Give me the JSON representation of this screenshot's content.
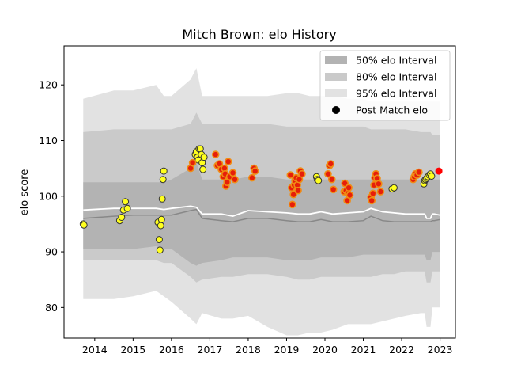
{
  "chart_data": {
    "type": "scatter",
    "title": "Mitch Brown: elo History",
    "xlabel": "",
    "ylabel": "elo score",
    "xlim": [
      2013.2,
      2023.4
    ],
    "ylim": [
      74.5,
      127.0
    ],
    "x_ticks": [
      "2014",
      "2015",
      "2016",
      "2017",
      "2018",
      "2019",
      "2020",
      "2021",
      "2022",
      "2023"
    ],
    "y_ticks": [
      "80",
      "90",
      "100",
      "110",
      "120"
    ],
    "legend": {
      "placement": "top-right",
      "entries": [
        "50% elo Interval",
        "80% elo Interval",
        "95% elo Interval",
        "Post Match elo"
      ]
    },
    "colors": {
      "band95": "#e2e2e2",
      "band80": "#cacaca",
      "band50": "#b3b3b3",
      "median_line": "#ffffff",
      "median50_line": "#888888",
      "point_yellow": "#ffff1e",
      "point_red": "#e61e0a",
      "point_orange_edge": "#f08c14",
      "last_point": "#ff0000"
    },
    "bands": {
      "x": [
        2013.7,
        2014.5,
        2015.0,
        2015.6,
        2015.8,
        2016.0,
        2016.5,
        2016.65,
        2016.8,
        2017.3,
        2017.6,
        2018.0,
        2018.5,
        2019.0,
        2019.3,
        2019.6,
        2019.9,
        2020.2,
        2020.6,
        2021.0,
        2021.2,
        2021.5,
        2021.8,
        2022.1,
        2022.5,
        2022.6,
        2022.65,
        2022.75,
        2022.8,
        2022.85,
        2023.0
      ],
      "p95_lo": [
        81.5,
        81.5,
        82,
        83,
        82,
        81,
        78,
        77,
        79,
        78,
        78,
        78.5,
        76.5,
        75,
        75,
        75.5,
        75.5,
        76,
        77,
        77,
        77,
        77.5,
        78,
        78.5,
        79,
        79,
        76.5,
        76.5,
        80,
        80,
        80
      ],
      "p95_hi": [
        117.5,
        119,
        119,
        120,
        118,
        118,
        121,
        123,
        118,
        118,
        118,
        118,
        118,
        118.5,
        118.5,
        118,
        118,
        118,
        117.5,
        117.5,
        117,
        117,
        117,
        117,
        117,
        117,
        117,
        117,
        117,
        117,
        117
      ],
      "p80_lo": [
        88.5,
        88.5,
        88.5,
        88.5,
        88,
        88,
        85.5,
        84.5,
        85,
        85.5,
        85.5,
        86,
        86,
        85.5,
        85,
        85,
        85.5,
        85.5,
        85.5,
        85.5,
        85.5,
        86,
        86,
        86.5,
        86.5,
        86.5,
        84.5,
        84.5,
        86.5,
        86.5,
        86.5
      ],
      "p80_hi": [
        111.5,
        112,
        112,
        112,
        112,
        112,
        113,
        115,
        113,
        113,
        113,
        113,
        113,
        112.5,
        112.5,
        112.5,
        112.5,
        112.5,
        112.5,
        112.5,
        112,
        112,
        112,
        112,
        111.5,
        111.5,
        111.5,
        111.5,
        111,
        111,
        111
      ],
      "p50_lo": [
        90.5,
        90.5,
        90.5,
        91,
        90.5,
        90.5,
        88,
        87.5,
        88,
        88.5,
        89,
        89,
        89,
        88.5,
        88.5,
        88.5,
        89,
        89,
        89,
        89.5,
        89.5,
        89.5,
        89.5,
        89.5,
        89.5,
        89.5,
        88.5,
        88.5,
        90,
        90,
        90
      ],
      "p50_hi": [
        102.5,
        102.5,
        102.5,
        102.5,
        102.5,
        103,
        105,
        106,
        103,
        103,
        103,
        103.5,
        103.5,
        103,
        103,
        103,
        103,
        103,
        103,
        103,
        103,
        103,
        103,
        103,
        103,
        103,
        103,
        103,
        103,
        103,
        103
      ],
      "median": [
        97.5,
        97.8,
        97.8,
        97.8,
        97.6,
        97.8,
        98.2,
        98.0,
        96.8,
        96.8,
        96.4,
        97.4,
        97.2,
        97.0,
        96.8,
        96.8,
        97.2,
        96.8,
        97.0,
        97.2,
        97.8,
        97.2,
        97.0,
        96.8,
        96.8,
        96.8,
        96.0,
        96.0,
        96.8,
        96.8,
        96.6
      ],
      "median50": [
        96.0,
        96.4,
        96.6,
        96.6,
        96.6,
        96.6,
        97.4,
        97.6,
        96.0,
        95.6,
        95.4,
        96.0,
        96.0,
        95.6,
        95.4,
        95.4,
        95.8,
        95.4,
        95.4,
        95.6,
        96.4,
        95.6,
        95.4,
        95.4,
        95.4,
        95.4,
        95.4,
        95.4,
        95.6,
        95.6,
        95.8
      ]
    },
    "series": [
      {
        "style": "yellow",
        "x": [
          2013.7,
          2013.72,
          2014.65,
          2014.7,
          2014.75,
          2014.8,
          2014.85,
          2015.65,
          2015.68,
          2015.7,
          2015.72,
          2015.74,
          2015.76,
          2015.78,
          2015.8,
          2016.62,
          2016.65,
          2016.68,
          2016.7,
          2016.72,
          2016.75,
          2016.78,
          2016.8,
          2016.82,
          2016.85,
          2019.78,
          2019.8,
          2019.83,
          2021.75,
          2021.8,
          2022.58,
          2022.6,
          2022.62,
          2022.65,
          2022.68,
          2022.72,
          2022.75,
          2022.78
        ],
        "y": [
          95.0,
          94.8,
          95.6,
          96.2,
          97.5,
          99.0,
          97.8,
          95.3,
          92.2,
          90.3,
          94.7,
          95.8,
          99.5,
          103.0,
          104.5,
          107.5,
          108.0,
          107.0,
          106.5,
          108.5,
          108.5,
          107.5,
          106.0,
          104.8,
          107.0,
          103.5,
          103.0,
          102.8,
          101.3,
          101.5,
          102.2,
          102.8,
          103.0,
          103.2,
          103.5,
          103.8,
          104.0,
          103.6
        ]
      },
      {
        "style": "red",
        "x": [
          2016.5,
          2016.55,
          2017.15,
          2017.2,
          2017.25,
          2017.3,
          2017.35,
          2017.38,
          2017.4,
          2017.42,
          2017.45,
          2017.48,
          2017.52,
          2017.6,
          2017.65,
          2018.1,
          2018.15,
          2018.18,
          2019.1,
          2019.13,
          2019.15,
          2019.18,
          2019.2,
          2019.22,
          2019.25,
          2019.28,
          2019.3,
          2019.33,
          2019.36,
          2019.4,
          2020.08,
          2020.12,
          2020.15,
          2020.18,
          2020.22,
          2020.5,
          2020.52,
          2020.55,
          2020.58,
          2020.6,
          2020.62,
          2020.65,
          2021.2,
          2021.22,
          2021.25,
          2021.28,
          2021.3,
          2021.33,
          2021.36,
          2021.4,
          2021.45,
          2022.3,
          2022.33,
          2022.36,
          2022.4,
          2022.45
        ],
        "y": [
          105.0,
          106.0,
          107.5,
          105.5,
          105.8,
          104.8,
          103.5,
          105.0,
          104.0,
          101.8,
          102.5,
          106.2,
          103.5,
          104.2,
          103.0,
          103.3,
          105.0,
          104.5,
          103.8,
          101.5,
          98.5,
          100.3,
          102.0,
          102.8,
          103.3,
          102.0,
          101.0,
          103.0,
          104.5,
          104.0,
          104.0,
          105.5,
          105.8,
          103.0,
          101.2,
          100.8,
          102.3,
          101.0,
          99.2,
          100.5,
          101.5,
          100.2,
          99.8,
          99.2,
          100.5,
          102.0,
          103.3,
          104.0,
          103.2,
          102.2,
          100.8,
          103.0,
          103.5,
          104.0,
          103.8,
          104.3
        ]
      },
      {
        "style": "last",
        "x": [
          2022.97
        ],
        "y": [
          104.5
        ]
      }
    ]
  }
}
